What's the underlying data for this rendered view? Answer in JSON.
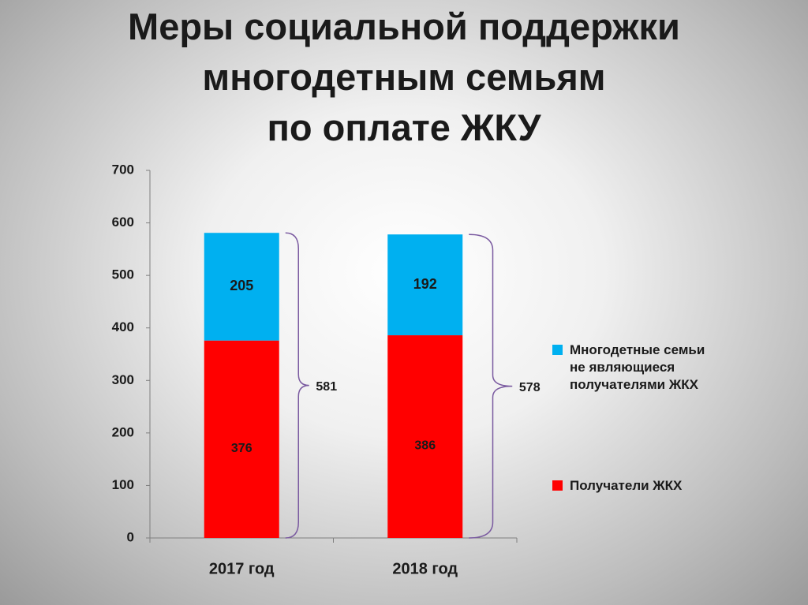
{
  "chart_data": {
    "type": "stacked_bar",
    "title": "Меры социальной поддержки\nмногодетным семьям\nпо оплате ЖКУ",
    "categories": [
      "2017 год",
      "2018 год"
    ],
    "series": [
      {
        "name": "Получатели ЖКХ",
        "color": "#ff0000",
        "values": [
          376,
          386
        ]
      },
      {
        "name": "Многодетные семьи\nне являющиеся\nполучателями ЖКХ",
        "color": "#00b0f0",
        "values": [
          205,
          192
        ]
      }
    ],
    "totals": [
      581,
      578
    ],
    "ylim": [
      0,
      700
    ],
    "yticks": [
      0,
      100,
      200,
      300,
      400,
      500,
      600,
      700
    ],
    "grid": false,
    "legend": "right"
  }
}
